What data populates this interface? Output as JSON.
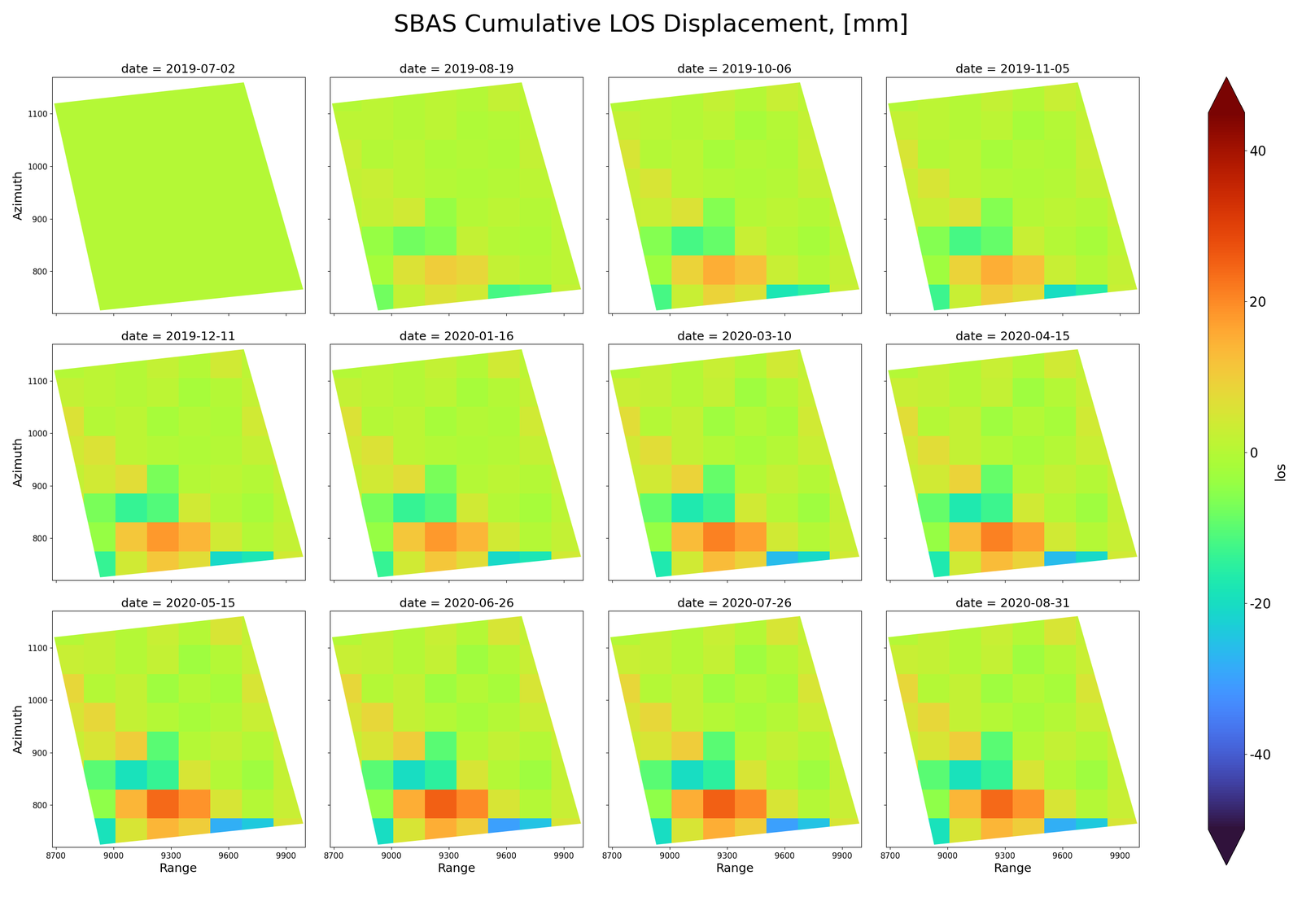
{
  "chart_data": {
    "type": "heatmap",
    "title": "SBAS Cumulative LOS Displacement, [mm]",
    "xlabel": "Range",
    "ylabel": "Azimuth",
    "x_edges": [
      8680,
      8845,
      9010,
      9175,
      9340,
      9505,
      9670,
      9835,
      10000
    ],
    "y_edges": [
      720,
      775,
      830,
      885,
      940,
      995,
      1050,
      1105,
      1170
    ],
    "xlim": [
      8680,
      10000
    ],
    "ylim": [
      720,
      1170
    ],
    "xticks": [
      8700,
      9000,
      9300,
      9600,
      9900
    ],
    "yticks": [
      800,
      900,
      1000,
      1100
    ],
    "color": "turbo",
    "colorbar": {
      "label": "los",
      "lim": [
        -50,
        45
      ],
      "ticks": [
        -40,
        -20,
        0,
        20,
        40
      ]
    },
    "footprint": {
      "range": [
        8690,
        9680,
        9990,
        8930
      ],
      "azimuth": [
        1120,
        1160,
        765,
        725
      ]
    },
    "panels": [
      {
        "title": "date = 2019-07-02",
        "cells": [
          [
            null,
            0,
            0,
            0,
            0,
            0,
            0,
            0
          ],
          [
            null,
            0,
            0,
            0,
            0,
            0,
            0,
            0
          ],
          [
            0,
            0,
            0,
            0,
            0,
            0,
            0,
            0
          ],
          [
            0,
            0,
            0,
            0,
            0,
            0,
            0,
            0
          ],
          [
            0,
            0,
            0,
            0,
            0,
            0,
            0,
            0
          ],
          [
            0,
            0,
            0,
            0,
            0,
            0,
            0,
            null
          ],
          [
            0,
            0,
            0,
            0,
            0,
            0,
            0,
            null
          ],
          [
            0,
            0,
            0,
            0,
            0,
            0,
            0,
            null
          ]
        ]
      },
      {
        "title": "date = 2019-08-19",
        "cells": [
          [
            null,
            -8,
            2,
            6,
            4,
            -12,
            -10,
            2
          ],
          [
            null,
            -2,
            6,
            10,
            8,
            2,
            0,
            1
          ],
          [
            2,
            -4,
            -8,
            -6,
            2,
            0,
            -1,
            1
          ],
          [
            1,
            2,
            4,
            -4,
            0,
            1,
            0,
            1
          ],
          [
            2,
            3,
            1,
            0,
            -1,
            0,
            1,
            2
          ],
          [
            3,
            0,
            1,
            -1,
            0,
            -1,
            2,
            null
          ],
          [
            1,
            1,
            0,
            1,
            -1,
            0,
            1,
            null
          ],
          [
            0,
            1,
            0,
            1,
            0,
            2,
            1,
            null
          ]
        ]
      },
      {
        "title": "date = 2019-10-06",
        "cells": [
          [
            null,
            -12,
            3,
            9,
            6,
            -18,
            -15,
            3
          ],
          [
            null,
            -3,
            9,
            15,
            12,
            3,
            0,
            2
          ],
          [
            3,
            -6,
            -12,
            -9,
            3,
            0,
            -2,
            1
          ],
          [
            2,
            3,
            6,
            -6,
            0,
            1,
            0,
            2
          ],
          [
            3,
            5,
            1,
            0,
            -1,
            0,
            2,
            3
          ],
          [
            5,
            0,
            1,
            -2,
            0,
            -1,
            3,
            null
          ],
          [
            2,
            1,
            0,
            1,
            -2,
            0,
            2,
            null
          ],
          [
            0,
            1,
            0,
            2,
            0,
            3,
            1,
            null
          ]
        ]
      },
      {
        "title": "date = 2019-11-05",
        "cells": [
          [
            null,
            -13,
            3,
            10,
            7,
            -20,
            -16,
            3
          ],
          [
            null,
            -3,
            9,
            15,
            12,
            3,
            0,
            2
          ],
          [
            3,
            -6,
            -12,
            -9,
            3,
            0,
            -2,
            1
          ],
          [
            2,
            3,
            6,
            -6,
            0,
            1,
            0,
            2
          ],
          [
            3,
            5,
            1,
            0,
            -1,
            0,
            2,
            3
          ],
          [
            5,
            0,
            1,
            -2,
            0,
            -1,
            3,
            null
          ],
          [
            2,
            1,
            0,
            1,
            -2,
            0,
            2,
            null
          ],
          [
            0,
            1,
            0,
            2,
            0,
            3,
            1,
            null
          ]
        ]
      },
      {
        "title": "date = 2019-12-11",
        "cells": [
          [
            null,
            -14,
            4,
            11,
            7,
            -21,
            -18,
            4
          ],
          [
            null,
            -4,
            11,
            18,
            14,
            4,
            0,
            2
          ],
          [
            4,
            -7,
            -14,
            -11,
            4,
            0,
            -2,
            1
          ],
          [
            2,
            4,
            7,
            -7,
            0,
            1,
            0,
            2
          ],
          [
            4,
            6,
            1,
            0,
            -1,
            0,
            2,
            4
          ],
          [
            6,
            0,
            1,
            -2,
            0,
            -1,
            4,
            null
          ],
          [
            2,
            1,
            0,
            1,
            -2,
            0,
            2,
            null
          ],
          [
            0,
            1,
            0,
            2,
            0,
            4,
            1,
            null
          ]
        ]
      },
      {
        "title": "date = 2020-01-16",
        "cells": [
          [
            null,
            -14,
            4,
            11,
            7,
            -21,
            -18,
            4
          ],
          [
            null,
            -4,
            11,
            18,
            14,
            4,
            0,
            2
          ],
          [
            4,
            -7,
            -14,
            -11,
            4,
            0,
            -2,
            1
          ],
          [
            2,
            4,
            7,
            -7,
            0,
            1,
            0,
            2
          ],
          [
            4,
            6,
            1,
            0,
            -1,
            0,
            2,
            4
          ],
          [
            6,
            0,
            1,
            -2,
            0,
            -1,
            4,
            null
          ],
          [
            2,
            1,
            0,
            1,
            -2,
            0,
            2,
            null
          ],
          [
            0,
            1,
            0,
            2,
            0,
            4,
            1,
            null
          ]
        ]
      },
      {
        "title": "date = 2020-03-10",
        "cells": [
          [
            null,
            -17,
            4,
            13,
            9,
            -26,
            -21,
            4
          ],
          [
            null,
            -4,
            13,
            21,
            17,
            4,
            0,
            3
          ],
          [
            4,
            -9,
            -17,
            -13,
            4,
            0,
            -3,
            2
          ],
          [
            3,
            4,
            9,
            -9,
            0,
            2,
            0,
            3
          ],
          [
            4,
            7,
            2,
            0,
            -2,
            0,
            3,
            4
          ],
          [
            7,
            0,
            2,
            -3,
            0,
            -2,
            4,
            null
          ],
          [
            3,
            2,
            0,
            2,
            -3,
            0,
            3,
            null
          ],
          [
            0,
            2,
            0,
            3,
            0,
            4,
            2,
            null
          ]
        ]
      },
      {
        "title": "date = 2020-04-15",
        "cells": [
          [
            null,
            -17,
            4,
            13,
            9,
            -26,
            -21,
            4
          ],
          [
            null,
            -4,
            13,
            21,
            17,
            4,
            0,
            3
          ],
          [
            4,
            -9,
            -17,
            -13,
            4,
            0,
            -3,
            2
          ],
          [
            3,
            4,
            9,
            -9,
            0,
            2,
            0,
            3
          ],
          [
            4,
            7,
            2,
            0,
            -2,
            0,
            3,
            4
          ],
          [
            7,
            0,
            2,
            -3,
            0,
            -2,
            4,
            null
          ],
          [
            3,
            2,
            0,
            2,
            -3,
            0,
            3,
            null
          ],
          [
            0,
            2,
            0,
            3,
            0,
            4,
            2,
            null
          ]
        ]
      },
      {
        "title": "date = 2020-05-15",
        "cells": [
          [
            null,
            -19,
            5,
            14,
            10,
            -28,
            -24,
            5
          ],
          [
            null,
            -5,
            14,
            24,
            19,
            5,
            0,
            3
          ],
          [
            5,
            -10,
            -19,
            -14,
            5,
            0,
            -3,
            2
          ],
          [
            3,
            5,
            10,
            -10,
            0,
            2,
            0,
            3
          ],
          [
            5,
            8,
            2,
            0,
            -2,
            0,
            3,
            5
          ],
          [
            8,
            0,
            2,
            -3,
            0,
            -2,
            5,
            null
          ],
          [
            3,
            2,
            0,
            2,
            -3,
            0,
            3,
            null
          ],
          [
            0,
            2,
            0,
            3,
            0,
            5,
            2,
            null
          ]
        ]
      },
      {
        "title": "date = 2020-06-26",
        "cells": [
          [
            null,
            -20,
            5,
            15,
            10,
            -30,
            -25,
            5
          ],
          [
            null,
            -5,
            15,
            25,
            20,
            5,
            0,
            3
          ],
          [
            5,
            -10,
            -20,
            -15,
            5,
            0,
            -3,
            2
          ],
          [
            3,
            5,
            10,
            -10,
            0,
            2,
            0,
            3
          ],
          [
            5,
            8,
            2,
            0,
            -2,
            0,
            3,
            5
          ],
          [
            8,
            0,
            2,
            -3,
            0,
            -2,
            5,
            null
          ],
          [
            3,
            2,
            0,
            2,
            -3,
            0,
            3,
            null
          ],
          [
            0,
            2,
            0,
            3,
            0,
            5,
            2,
            null
          ]
        ]
      },
      {
        "title": "date = 2020-07-26",
        "cells": [
          [
            null,
            -20,
            5,
            15,
            10,
            -30,
            -25,
            5
          ],
          [
            null,
            -5,
            15,
            25,
            20,
            5,
            0,
            3
          ],
          [
            5,
            -10,
            -20,
            -15,
            5,
            0,
            -3,
            2
          ],
          [
            3,
            5,
            10,
            -10,
            0,
            2,
            0,
            3
          ],
          [
            5,
            8,
            2,
            0,
            -2,
            0,
            3,
            5
          ],
          [
            8,
            0,
            2,
            -3,
            0,
            -2,
            5,
            null
          ],
          [
            3,
            2,
            0,
            2,
            -3,
            0,
            3,
            null
          ],
          [
            0,
            2,
            0,
            3,
            0,
            5,
            2,
            null
          ]
        ]
      },
      {
        "title": "date = 2020-08-31",
        "cells": [
          [
            null,
            -19,
            5,
            14,
            10,
            -28,
            -24,
            5
          ],
          [
            null,
            -5,
            14,
            24,
            19,
            5,
            0,
            3
          ],
          [
            5,
            -10,
            -19,
            -14,
            5,
            0,
            -3,
            2
          ],
          [
            3,
            5,
            10,
            -10,
            0,
            2,
            0,
            3
          ],
          [
            5,
            8,
            2,
            0,
            -2,
            0,
            3,
            5
          ],
          [
            8,
            0,
            2,
            -3,
            0,
            -2,
            5,
            null
          ],
          [
            3,
            2,
            0,
            2,
            -3,
            0,
            3,
            null
          ],
          [
            0,
            2,
            0,
            3,
            0,
            5,
            2,
            null
          ]
        ]
      }
    ]
  }
}
